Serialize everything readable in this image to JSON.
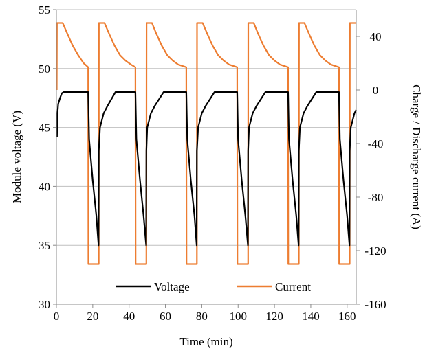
{
  "chart_data": {
    "type": "line",
    "title": "",
    "xlabel": "Time (min)",
    "ylabel": "Module voltage (V)",
    "y2label": "Charge / Discharge current (A)",
    "xlim": [
      0,
      165
    ],
    "ylim": [
      30,
      55
    ],
    "y2lim": [
      -160,
      60
    ],
    "x_ticks": [
      "0",
      "20",
      "40",
      "60",
      "80",
      "100",
      "120",
      "140",
      "160"
    ],
    "y_ticks": [
      "30",
      "35",
      "40",
      "45",
      "50",
      "55"
    ],
    "y2_ticks": [
      "-160",
      "-120",
      "-80",
      "-40",
      "0",
      "40"
    ],
    "grid": "horizontal",
    "legend_position": "bottom-center",
    "series": [
      {
        "name": "Voltage",
        "axis": "left",
        "color": "#000000",
        "x": [
          0.3,
          0.5,
          1,
          2,
          3,
          4,
          17.5,
          18,
          20,
          22,
          23.2,
          23.3,
          24,
          26,
          28,
          32.5,
          43.5,
          44,
          46,
          48,
          49.4,
          49.5,
          50,
          52,
          54,
          59,
          71.5,
          72,
          74,
          76,
          77.2,
          77.3,
          78,
          80,
          82,
          87,
          99.5,
          100,
          102,
          104,
          105.4,
          105.5,
          106,
          108,
          110,
          115,
          127.5,
          128,
          130,
          132,
          133.3,
          133.4,
          134,
          136,
          138,
          143,
          155.5,
          156,
          158,
          160,
          161.3,
          161.4,
          162,
          164,
          165
        ],
        "values": [
          44.2,
          46,
          47,
          47.5,
          47.9,
          48,
          48,
          44,
          40.5,
          37.5,
          35,
          43,
          45,
          46.2,
          46.8,
          48,
          48,
          44,
          40.5,
          37.5,
          35,
          43,
          45,
          46.2,
          46.8,
          48,
          48,
          44,
          40.5,
          37.5,
          35,
          43,
          45,
          46.2,
          46.8,
          48,
          48,
          44,
          40.5,
          37.5,
          35,
          43,
          45,
          46.2,
          46.8,
          48,
          48,
          44,
          40.5,
          37.5,
          35,
          43,
          45,
          46.2,
          46.8,
          48,
          48,
          44,
          40.5,
          37.5,
          35,
          43,
          45,
          46.2,
          46.5
        ]
      },
      {
        "name": "Current",
        "axis": "right",
        "color": "#ED7D31",
        "x": [
          0.2,
          0.3,
          3.5,
          6,
          9,
          12,
          15,
          17.5,
          17.6,
          23.3,
          23.4,
          26.5,
          29,
          32,
          35,
          38,
          41,
          43.5,
          43.6,
          49.5,
          49.6,
          52.6,
          55,
          58,
          61,
          64,
          67,
          71.5,
          71.6,
          77.3,
          77.4,
          80.5,
          83,
          86,
          89,
          92,
          95,
          99.5,
          99.6,
          105.5,
          105.6,
          108.6,
          111,
          114,
          117,
          120,
          123,
          127.5,
          127.6,
          133.4,
          133.5,
          136.5,
          139,
          142,
          145,
          148,
          151,
          155.5,
          155.6,
          161.4,
          161.5,
          165
        ],
        "values": [
          0,
          50,
          50,
          42,
          33,
          26,
          20,
          17,
          -130,
          -130,
          50,
          50,
          42,
          33,
          26,
          22,
          19,
          17,
          -130,
          -130,
          50,
          50,
          42,
          33,
          26,
          22,
          19,
          17,
          -130,
          -130,
          50,
          50,
          42,
          33,
          26,
          22,
          19,
          17,
          -130,
          -130,
          50,
          50,
          42,
          33,
          26,
          22,
          19,
          17,
          -130,
          -130,
          50,
          50,
          42,
          33,
          26,
          22,
          19,
          17,
          -130,
          -130,
          50,
          50
        ]
      }
    ]
  }
}
